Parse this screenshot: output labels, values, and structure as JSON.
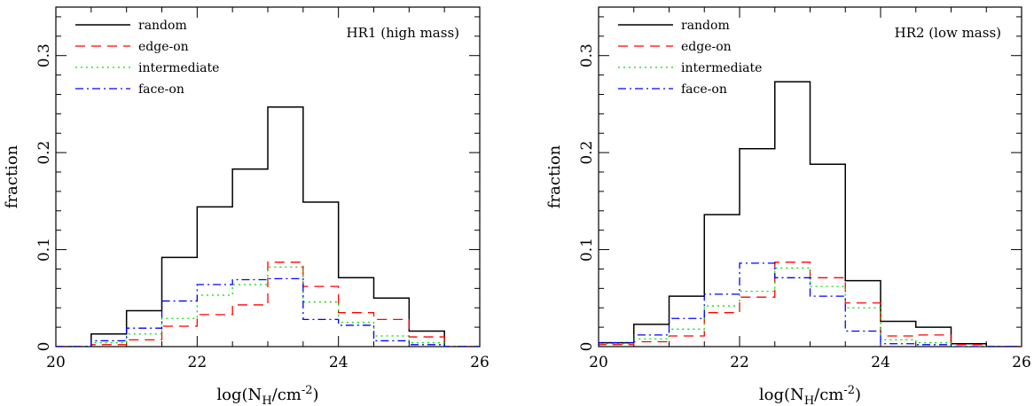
{
  "chart_data": [
    {
      "type": "histogram",
      "title": "HR1 (high mass)",
      "xlabel": "log(N_H/cm^-2)",
      "ylabel": "fraction",
      "xlim": [
        20,
        26
      ],
      "ylim": [
        0,
        0.35
      ],
      "xticks": [
        20,
        22,
        24,
        26
      ],
      "yticks": [
        0,
        0.1,
        0.2,
        0.3
      ],
      "bin_edges": [
        20,
        20.5,
        21,
        21.5,
        22,
        22.5,
        23,
        23.5,
        24,
        24.5,
        25,
        25.5,
        26
      ],
      "legend_position": "top-left",
      "series": [
        {
          "name": "random",
          "color": "#000000",
          "dash": "solid",
          "values": [
            0,
            0.013,
            0.037,
            0.092,
            0.144,
            0.183,
            0.247,
            0.149,
            0.071,
            0.05,
            0.016,
            0
          ]
        },
        {
          "name": "edge-on",
          "color": "#ff0000",
          "dash": "dashed",
          "values": [
            0,
            0.002,
            0.007,
            0.021,
            0.033,
            0.043,
            0.087,
            0.062,
            0.035,
            0.028,
            0.01,
            0
          ]
        },
        {
          "name": "intermediate",
          "color": "#00dd00",
          "dash": "dotted",
          "values": [
            0,
            0.004,
            0.013,
            0.029,
            0.053,
            0.064,
            0.082,
            0.046,
            0.025,
            0.011,
            0.004,
            0
          ]
        },
        {
          "name": "face-on",
          "color": "#0000ff",
          "dash": "dashdot",
          "values": [
            0,
            0.006,
            0.019,
            0.047,
            0.064,
            0.069,
            0.07,
            0.028,
            0.022,
            0.006,
            0.002,
            0
          ]
        }
      ]
    },
    {
      "type": "histogram",
      "title": "HR2 (low mass)",
      "xlabel": "log(N_H/cm^-2)",
      "ylabel": "fraction",
      "xlim": [
        20,
        26
      ],
      "ylim": [
        0,
        0.35
      ],
      "xticks": [
        20,
        22,
        24,
        26
      ],
      "yticks": [
        0,
        0.1,
        0.2,
        0.3
      ],
      "bin_edges": [
        20,
        20.5,
        21,
        21.5,
        22,
        22.5,
        23,
        23.5,
        24,
        24.5,
        25,
        25.5,
        26
      ],
      "legend_position": "top-left",
      "series": [
        {
          "name": "random",
          "color": "#000000",
          "dash": "solid",
          "values": [
            0.004,
            0.023,
            0.052,
            0.136,
            0.204,
            0.273,
            0.188,
            0.068,
            0.026,
            0.02,
            0.003,
            0
          ]
        },
        {
          "name": "edge-on",
          "color": "#ff0000",
          "dash": "dashed",
          "values": [
            0.002,
            0.005,
            0.011,
            0.035,
            0.051,
            0.087,
            0.071,
            0.045,
            0.011,
            0.012,
            0.002,
            0
          ]
        },
        {
          "name": "intermediate",
          "color": "#00dd00",
          "dash": "dotted",
          "values": [
            0.003,
            0.008,
            0.018,
            0.042,
            0.057,
            0.081,
            0.062,
            0.04,
            0.007,
            0.004,
            0,
            0
          ]
        },
        {
          "name": "face-on",
          "color": "#0000ff",
          "dash": "dashdot",
          "values": [
            0.004,
            0.012,
            0.029,
            0.054,
            0.086,
            0.071,
            0.052,
            0.016,
            0.003,
            0.002,
            0,
            0
          ]
        }
      ]
    }
  ]
}
